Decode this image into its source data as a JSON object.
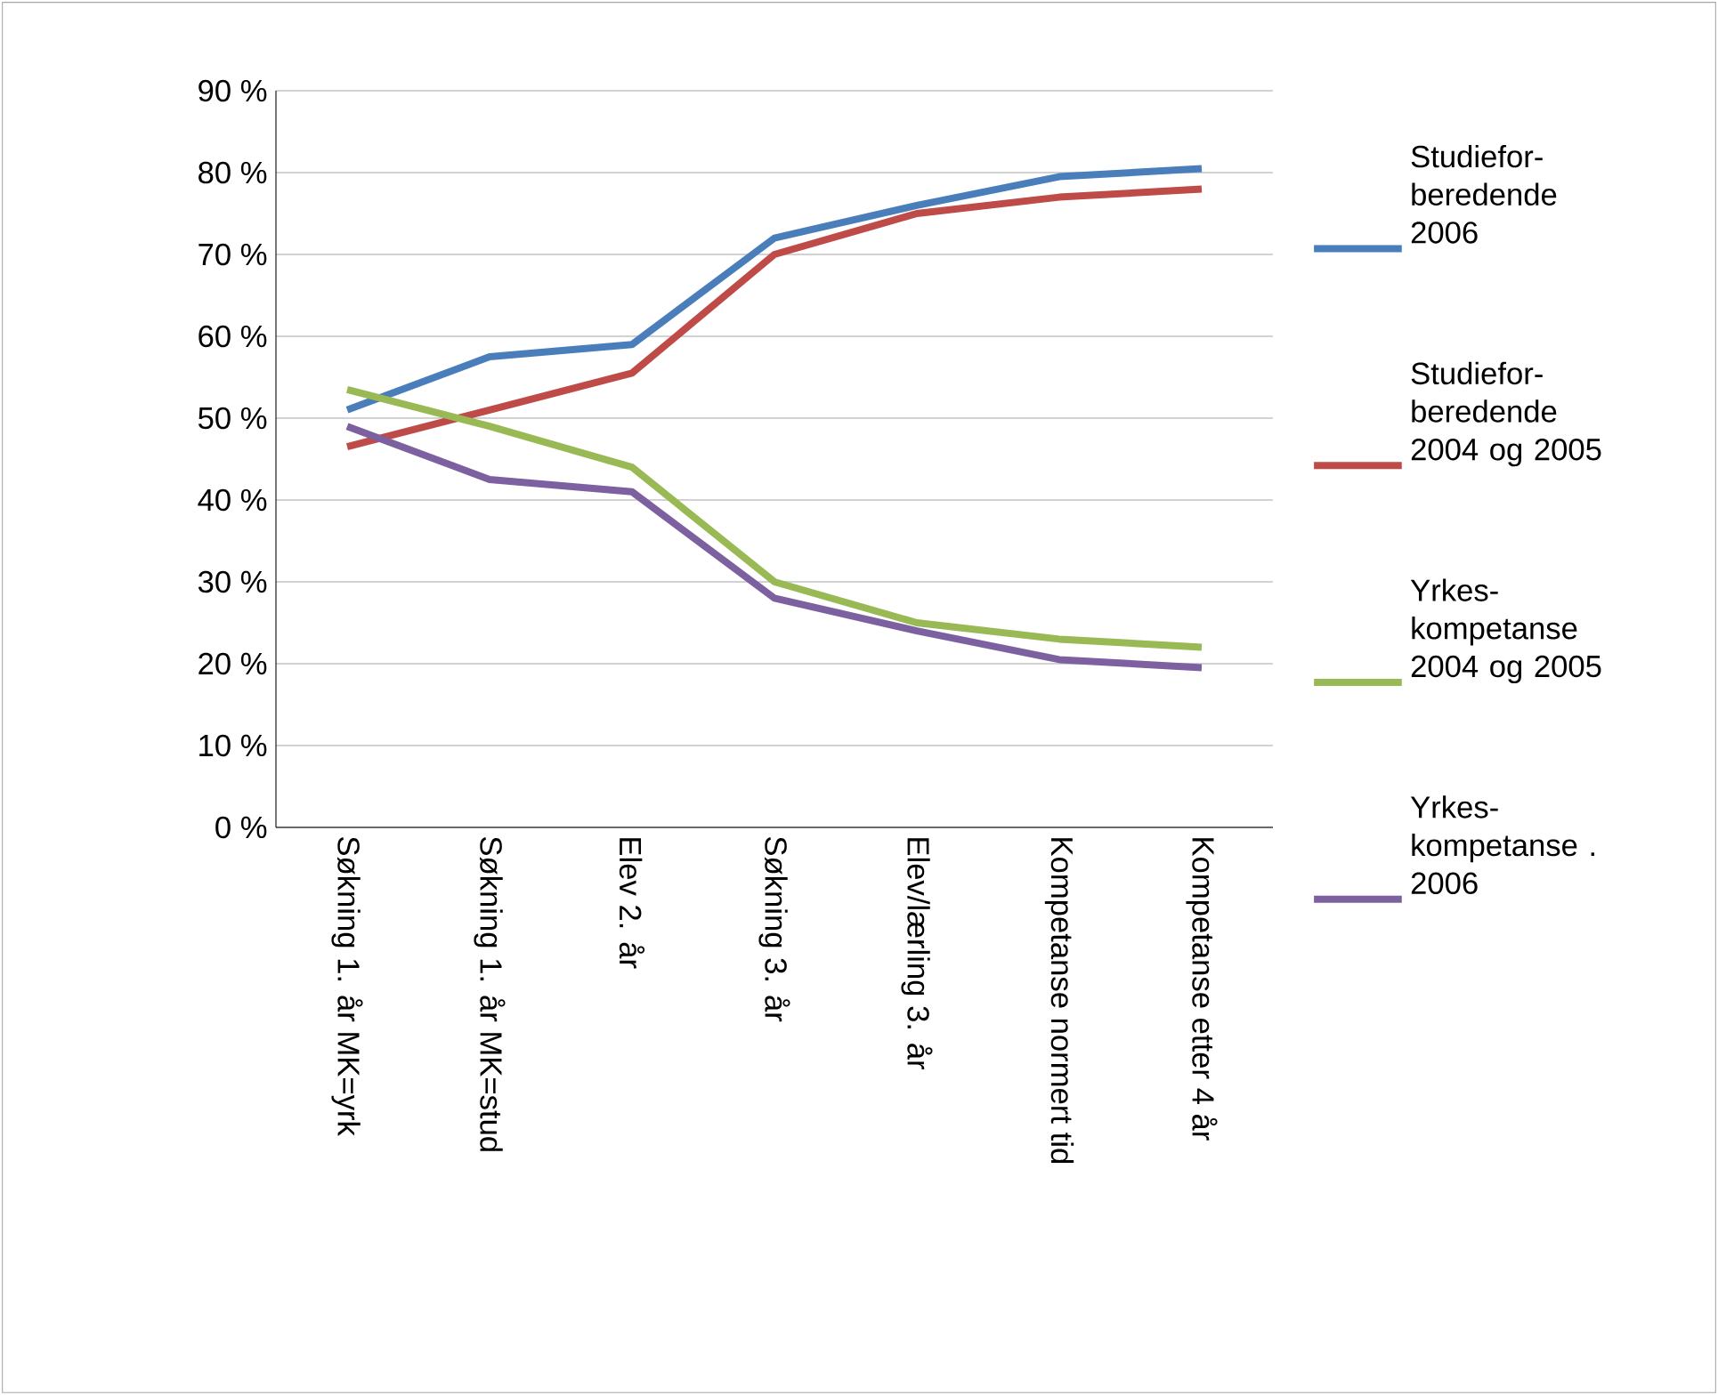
{
  "chart_data": {
    "type": "line",
    "categories": [
      "Søkning 1. år MK=yrk",
      "Søkning 1. år MK=stud",
      "Elev 2. år",
      "Søkning 3. år",
      "Elev/lærling 3. år",
      "Kompetanse normert tid",
      "Kompetanse etter 4 år"
    ],
    "series": [
      {
        "name": "Studiefor-beredende 2006",
        "color": "#4a7ebb",
        "values": [
          51,
          57.5,
          59,
          72,
          76,
          79.5,
          80.5
        ]
      },
      {
        "name": "Studiefor-beredende 2004 og 2005",
        "color": "#be4b48",
        "values": [
          46.5,
          51,
          55.5,
          70,
          75,
          77,
          78
        ]
      },
      {
        "name": "Yrkes-kompetanse 2004 og 2005",
        "color": "#98b954",
        "values": [
          53.5,
          49,
          44,
          30,
          25,
          23,
          22
        ]
      },
      {
        "name": "Yrkes-kompetanse . 2006",
        "color": "#7d60a0",
        "values": [
          49,
          42.5,
          41,
          28,
          24,
          20.5,
          19.5
        ]
      }
    ],
    "ylim": [
      0,
      90
    ],
    "yticks": [
      {
        "value": 0,
        "label": "0 %"
      },
      {
        "value": 10,
        "label": "10 %"
      },
      {
        "value": 20,
        "label": "20 %"
      },
      {
        "value": 30,
        "label": "30 %"
      },
      {
        "value": 40,
        "label": "40 %"
      },
      {
        "value": 50,
        "label": "50 %"
      },
      {
        "value": 60,
        "label": "60 %"
      },
      {
        "value": 70,
        "label": "70 %"
      },
      {
        "value": 80,
        "label": "80 %"
      },
      {
        "value": 90,
        "label": "90 %"
      }
    ],
    "grid": "y",
    "legend": "right",
    "marker": "none",
    "line_style": "solid"
  }
}
